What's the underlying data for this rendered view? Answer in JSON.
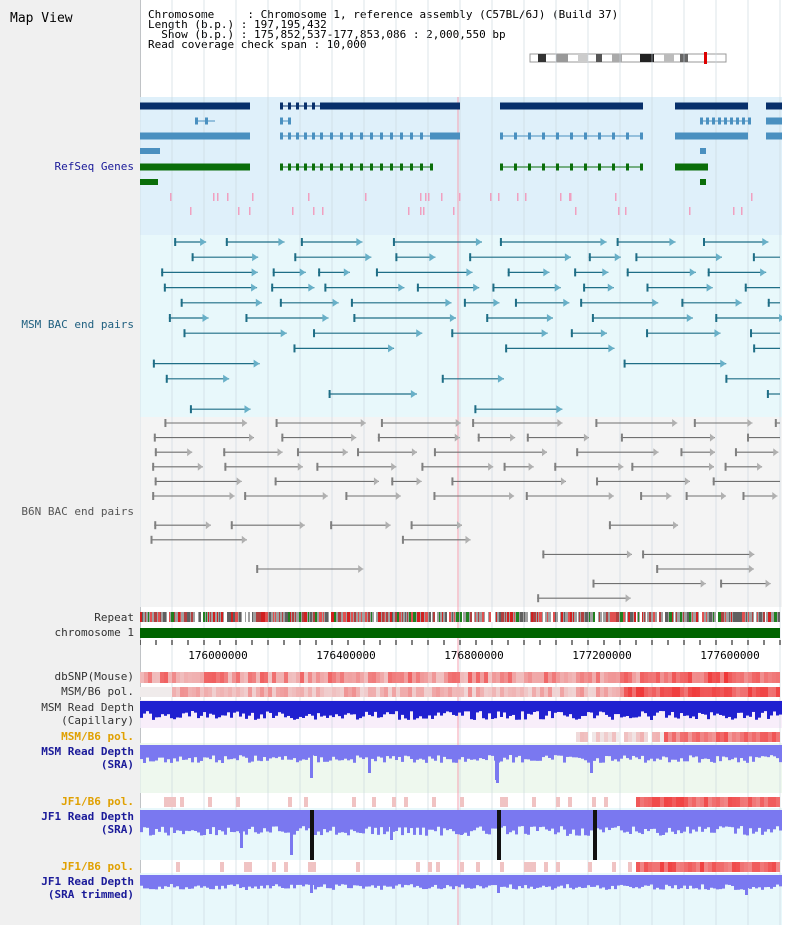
{
  "app": {
    "title": "Map View"
  },
  "info": {
    "line1": "Chromosome     : Chromosome 1, reference assembly (C57BL/6J) (Build 37)",
    "line2": "Length (b.p.) : 197,195,432",
    "line3": "  Show (b.p.) : 175,852,537-177,853,086 : 2,000,550 bp",
    "line4": "Read coverage check span : 10,000"
  },
  "tracks": {
    "refseq": "RefSeq Genes",
    "msm_bac": "MSM BAC end pairs",
    "b6n_bac": "B6N BAC end pairs",
    "repeat": "Repeat",
    "chromosome": "chromosome 1",
    "dbsnp": "dbSNP(Mouse)",
    "msm_b6_pol": "MSM/B6 pol.",
    "msm_depth_cap_1": "MSM Read Depth",
    "msm_depth_cap_2": "(Capillary)",
    "msm_b6_pol2": "MSM/B6 pol.",
    "msm_depth_sra_1": "MSM Read Depth",
    "msm_depth_sra_2": "(SRA)",
    "jf1_b6_pol": "JF1/B6 pol.",
    "jf1_depth_sra_1": "JF1 Read Depth",
    "jf1_depth_sra_2": "(SRA)",
    "jf1_b6_pol2": "JF1/B6 pol.",
    "jf1_depth_trim_1": "JF1 Read Depth",
    "jf1_depth_trim_2": "(SRA trimmed)"
  },
  "axis": {
    "ticks": [
      "176000000",
      "176400000",
      "176800000",
      "177200000",
      "177600000"
    ]
  },
  "colors": {
    "refseq_bg": "#dff0fa",
    "msm_bg": "#e8f8fb",
    "b6n_bg": "#f4f4f4",
    "chrom_green": "#006400",
    "navy_gene": "#08306b",
    "light_gene": "#4a90c0",
    "green_gene": "#0a6e0a",
    "msm_line": "#1f6e86",
    "b6n_line": "#707070",
    "depth_blue": "#2020d0",
    "depth_light": "#7a78f0"
  }
}
